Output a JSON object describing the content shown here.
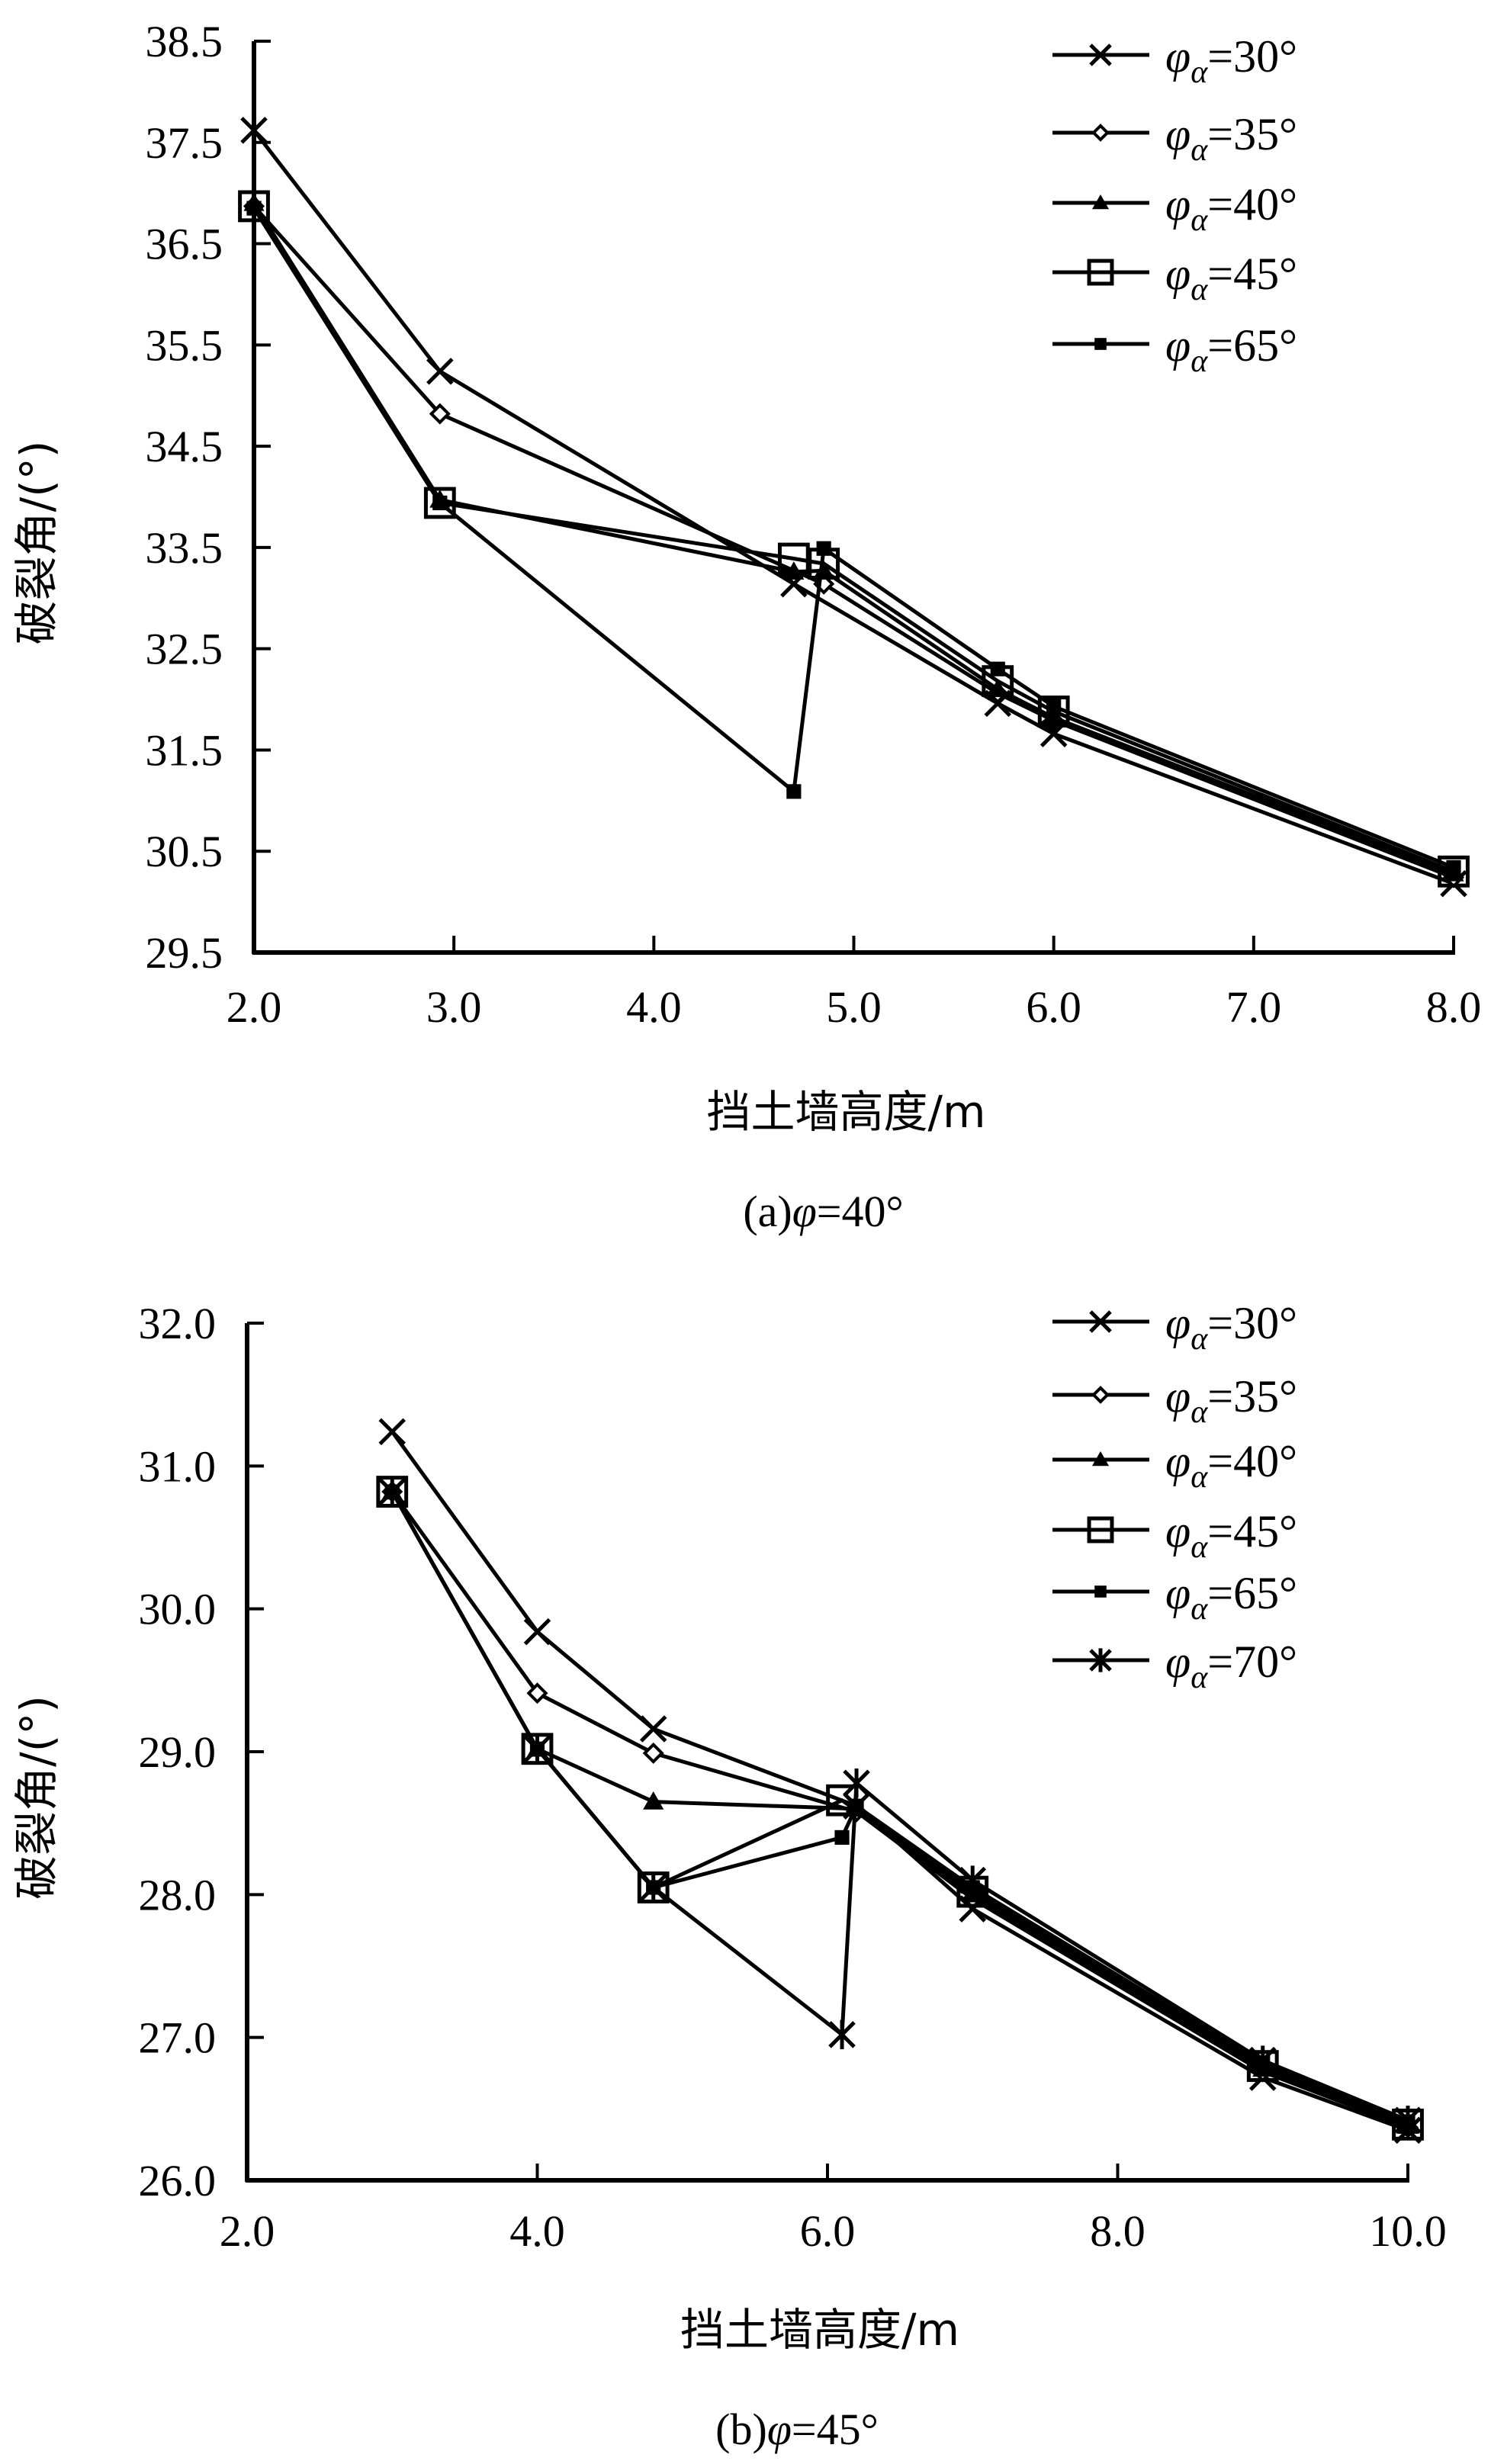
{
  "chart_data": [
    {
      "type": "line",
      "panel": "a",
      "caption": {
        "prefix": "(a)",
        "symbol": "φ",
        "suffix": "=40°"
      },
      "xlabel": "挡土墙高度/m",
      "ylabel": "破裂角/(°)",
      "xlim": [
        2.0,
        8.0
      ],
      "ylim": [
        29.5,
        38.5
      ],
      "xticks": [
        "2.0",
        "3.0",
        "4.0",
        "5.0",
        "6.0",
        "7.0",
        "8.0"
      ],
      "yticks": [
        "29.5",
        "30.5",
        "31.5",
        "32.5",
        "33.5",
        "34.5",
        "35.5",
        "36.5",
        "37.5",
        "38.5"
      ],
      "grid": false,
      "legend_position": "top-right",
      "series": [
        {
          "name": "φα=30°",
          "label_value": "=30°",
          "marker": "x",
          "x": [
            2.0,
            2.93,
            4.7,
            5.72,
            6.0,
            8.0
          ],
          "y": [
            37.62,
            35.24,
            33.14,
            31.96,
            31.66,
            30.18
          ]
        },
        {
          "name": "φα=35°",
          "label_value": "=35°",
          "marker": "diamond",
          "x": [
            2.0,
            2.93,
            4.85,
            5.72,
            6.0,
            8.0
          ],
          "y": [
            36.87,
            34.82,
            33.14,
            32.06,
            31.79,
            30.24
          ]
        },
        {
          "name": "φα=40°",
          "label_value": "=40°",
          "marker": "triangle",
          "x": [
            2.0,
            2.93,
            4.7,
            4.85,
            5.72,
            6.0,
            8.0
          ],
          "y": [
            36.9,
            33.97,
            33.26,
            33.27,
            32.1,
            31.82,
            30.28
          ]
        },
        {
          "name": "φα=45°",
          "label_value": "=45°",
          "marker": "square-open",
          "x": [
            2.0,
            2.93,
            4.7,
            4.85,
            5.72,
            6.0,
            8.0
          ],
          "y": [
            36.87,
            33.94,
            33.39,
            33.34,
            32.18,
            31.88,
            30.3
          ]
        },
        {
          "name": "φα=65°",
          "label_value": "=65°",
          "marker": "square-filled",
          "x": [
            2.0,
            2.93,
            4.7,
            4.85,
            5.72,
            6.0,
            8.0
          ],
          "y": [
            36.85,
            33.94,
            31.09,
            33.49,
            32.3,
            31.93,
            30.34
          ]
        }
      ]
    },
    {
      "type": "line",
      "panel": "b",
      "caption": {
        "prefix": "(b)",
        "symbol": "φ",
        "suffix": "=45°"
      },
      "xlabel": "挡土墙高度/m",
      "ylabel": "破裂角/(°)",
      "xlim": [
        2.0,
        10.0
      ],
      "ylim": [
        26.0,
        32.0
      ],
      "xticks": [
        "2.0",
        "4.0",
        "6.0",
        "8.0",
        "10.0"
      ],
      "yticks": [
        "26.0",
        "27.0",
        "28.0",
        "29.0",
        "30.0",
        "31.0",
        "32.0"
      ],
      "grid": false,
      "legend_position": "top-right",
      "series": [
        {
          "name": "φα=30°",
          "label_value": "=30°",
          "marker": "x",
          "x": [
            3.0,
            4.0,
            4.8,
            6.2,
            7.0,
            9.0,
            10.0
          ],
          "y": [
            31.24,
            29.84,
            29.16,
            28.62,
            27.9,
            26.72,
            26.35
          ]
        },
        {
          "name": "φα=35°",
          "label_value": "=35°",
          "marker": "diamond",
          "x": [
            3.0,
            4.0,
            4.8,
            6.2,
            7.0,
            9.0,
            10.0
          ],
          "y": [
            30.82,
            29.41,
            28.99,
            28.58,
            27.97,
            26.76,
            26.37
          ]
        },
        {
          "name": "φα=40°",
          "label_value": "=40°",
          "marker": "triangle",
          "x": [
            3.0,
            4.0,
            4.8,
            6.2,
            7.0,
            9.0,
            10.0
          ],
          "y": [
            30.82,
            29.02,
            28.65,
            28.6,
            28.0,
            26.78,
            26.38
          ]
        },
        {
          "name": "φα=45°",
          "label_value": "=45°",
          "marker": "square-open",
          "x": [
            3.0,
            4.0,
            4.8,
            6.1,
            7.0,
            9.0,
            10.0
          ],
          "y": [
            30.82,
            29.02,
            28.05,
            28.66,
            28.02,
            26.8,
            26.39
          ]
        },
        {
          "name": "φα=65°",
          "label_value": "=65°",
          "marker": "square-filled",
          "x": [
            3.0,
            4.0,
            4.8,
            6.1,
            6.2,
            7.0,
            9.0,
            10.0
          ],
          "y": [
            30.82,
            29.02,
            28.05,
            28.4,
            28.62,
            28.05,
            26.82,
            26.41
          ]
        },
        {
          "name": "φα=70°",
          "label_value": "=70°",
          "marker": "asterisk",
          "x": [
            3.0,
            4.0,
            4.8,
            6.1,
            6.2,
            7.0,
            9.0,
            10.0
          ],
          "y": [
            30.82,
            29.02,
            28.05,
            27.02,
            28.78,
            28.1,
            26.84,
            26.42
          ]
        }
      ]
    }
  ]
}
